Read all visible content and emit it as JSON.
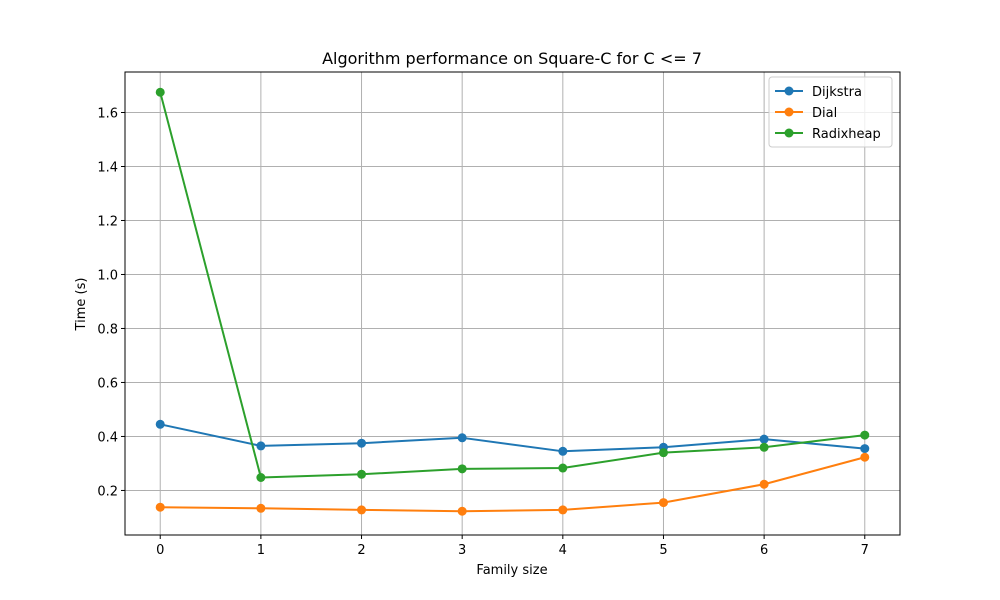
{
  "chart_data": {
    "type": "line",
    "title": "Algorithm performance on Square-C for C <= 7",
    "xlabel": "Family size",
    "ylabel": "Time (s)",
    "x": [
      0,
      1,
      2,
      3,
      4,
      5,
      6,
      7
    ],
    "xlim": [
      -0.35,
      7.35
    ],
    "ylim": [
      0.035,
      1.75
    ],
    "xticks": [
      0,
      1,
      2,
      3,
      4,
      5,
      6,
      7
    ],
    "yticks": [
      0.2,
      0.4,
      0.6,
      0.8,
      1.0,
      1.2,
      1.4,
      1.6
    ],
    "ytick_labels": [
      "0.2",
      "0.4",
      "0.6",
      "0.8",
      "1.0",
      "1.2",
      "1.4",
      "1.6"
    ],
    "grid": true,
    "legend_position": "top-right",
    "series": [
      {
        "name": "Dijkstra",
        "color": "#1f77b4",
        "marker": "circle",
        "values": [
          0.445,
          0.365,
          0.375,
          0.395,
          0.345,
          0.36,
          0.39,
          0.355
        ]
      },
      {
        "name": "Dial",
        "color": "#ff7f0e",
        "marker": "circle",
        "values": [
          0.138,
          0.134,
          0.128,
          0.123,
          0.128,
          0.155,
          0.223,
          0.323
        ]
      },
      {
        "name": "Radixheap",
        "color": "#2ca02c",
        "marker": "circle",
        "values": [
          1.675,
          0.248,
          0.26,
          0.28,
          0.283,
          0.34,
          0.36,
          0.405
        ]
      }
    ]
  }
}
